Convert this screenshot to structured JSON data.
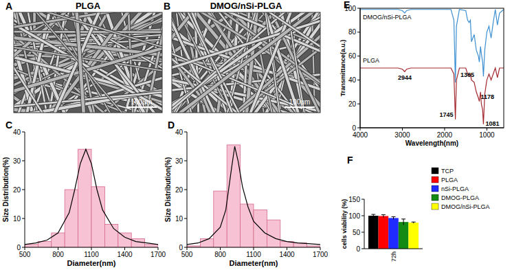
{
  "images": [
    {
      "label": "A",
      "title": "PLGA",
      "scale_bar": "100μm"
    },
    {
      "label": "B",
      "title": "DMOG/nSi-PLGA",
      "scale_bar": "100μm"
    }
  ],
  "chart_data": [
    {
      "type": "histogram",
      "annotations": [
        "C"
      ],
      "xlabel": "Diameter(nm)",
      "ylabel": "Size Distribution(%)",
      "bins": [
        500,
        620,
        740,
        860,
        980,
        1100,
        1220,
        1340,
        1460,
        1580,
        1700
      ],
      "values": [
        1,
        2,
        5,
        20,
        34,
        21,
        8,
        5,
        3,
        1
      ],
      "color": "#f7c3d4",
      "fit": {
        "color": "#000000",
        "x": [
          500,
          600,
          700,
          800,
          900,
          950,
          1000,
          1050,
          1100,
          1150,
          1200,
          1300,
          1400,
          1500,
          1600,
          1700
        ],
        "values": [
          1,
          1.5,
          2.5,
          5,
          12,
          20,
          29,
          34,
          29,
          20,
          13,
          6.5,
          3.5,
          2,
          1.5,
          1
        ]
      },
      "xlim": [
        500,
        1700
      ],
      "xticks": [
        500,
        800,
        1100,
        1400,
        1700
      ],
      "ylim": [
        0,
        40
      ],
      "yticks": [
        0,
        10,
        20,
        30,
        40
      ]
    },
    {
      "type": "histogram",
      "annotations": [
        "D"
      ],
      "xlabel": "Diameter(nm)",
      "ylabel": "Size Distribution(%)",
      "bins": [
        500,
        620,
        740,
        860,
        980,
        1100,
        1220,
        1340,
        1460,
        1580,
        1700
      ],
      "values": [
        0.5,
        3,
        19.5,
        35.5,
        15,
        13,
        9.5,
        2,
        1.5,
        0.5
      ],
      "color": "#f7c3d4",
      "fit": {
        "color": "#000000",
        "x": [
          500,
          600,
          700,
          800,
          850,
          900,
          930,
          960,
          1000,
          1050,
          1100,
          1200,
          1300,
          1400,
          1500,
          1700
        ],
        "values": [
          1,
          1.5,
          3,
          7,
          13,
          27,
          35,
          30,
          21,
          14,
          9,
          5,
          3,
          2,
          1.5,
          1
        ]
      },
      "xlim": [
        500,
        1700
      ],
      "xticks": [
        500,
        800,
        1100,
        1400,
        1700
      ],
      "ylim": [
        0,
        40
      ],
      "yticks": [
        0,
        10,
        20,
        30,
        40
      ]
    },
    {
      "type": "line",
      "annotations": [
        "E"
      ],
      "xlabel": "Wavelength(nm)",
      "ylabel": "Transmittance(a.u.)",
      "xlim": [
        4000,
        600
      ],
      "xticks": [
        4000,
        3000,
        2000,
        1000
      ],
      "ylim": [
        0,
        100
      ],
      "yticks": [
        0,
        20,
        40,
        60,
        80,
        100
      ],
      "peaks": [
        2944,
        1745,
        1365,
        1178,
        1081
      ],
      "series": [
        {
          "name": "DMOG/nSi-PLGA",
          "color": "#3b8fd0",
          "x": [
            4000,
            3100,
            3000,
            2944,
            2900,
            2800,
            1850,
            1780,
            1745,
            1720,
            1650,
            1500,
            1455,
            1420,
            1390,
            1365,
            1300,
            1250,
            1200,
            1178,
            1150,
            1130,
            1100,
            1081,
            1050,
            1000,
            950,
            900,
            850,
            800,
            750,
            700,
            600
          ],
          "values": [
            99,
            99,
            98,
            96,
            98,
            99,
            99,
            90,
            38,
            85,
            99,
            98,
            90,
            88,
            90,
            72,
            78,
            65,
            60,
            55,
            68,
            62,
            55,
            43,
            65,
            80,
            85,
            75,
            88,
            99,
            86,
            96,
            99
          ]
        },
        {
          "name": "PLGA",
          "color": "#a3282e",
          "x": [
            4000,
            3100,
            3000,
            2944,
            2900,
            2800,
            1850,
            1780,
            1745,
            1720,
            1650,
            1500,
            1455,
            1420,
            1390,
            1365,
            1300,
            1250,
            1200,
            1178,
            1150,
            1130,
            1100,
            1081,
            1050,
            1000,
            950,
            900,
            850,
            800,
            750,
            700,
            600
          ],
          "values": [
            50,
            50,
            49,
            47,
            49,
            50,
            50,
            45,
            7,
            40,
            50,
            50,
            45,
            44,
            45,
            40,
            38,
            30,
            25,
            22,
            30,
            20,
            15,
            3,
            28,
            40,
            45,
            40,
            45,
            50,
            42,
            50,
            50
          ]
        }
      ]
    },
    {
      "type": "bar",
      "annotations": [
        "F"
      ],
      "ylabel": "cells viability (%)",
      "categories": [
        "72h"
      ],
      "ylim": [
        0,
        150
      ],
      "yticks": [
        0,
        50,
        100,
        150
      ],
      "legend": "right",
      "series": [
        {
          "name": "TCP",
          "color": "#000000",
          "values": [
            100
          ],
          "errors": [
            4
          ]
        },
        {
          "name": "PLGA",
          "color": "#ff0000",
          "values": [
            99
          ],
          "errors": [
            4
          ]
        },
        {
          "name": "nSi-PLGA",
          "color": "#1f2bff",
          "values": [
            93
          ],
          "errors": [
            4
          ]
        },
        {
          "name": "DMOG-PLGA",
          "color": "#138a13",
          "values": [
            81
          ],
          "errors": [
            9
          ]
        },
        {
          "name": "DMOG/nSi-PLGA",
          "color": "#ffff00",
          "values": [
            79
          ],
          "errors": [
            2
          ]
        }
      ]
    }
  ]
}
